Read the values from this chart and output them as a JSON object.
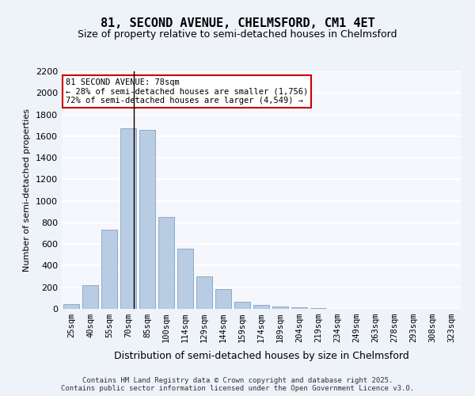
{
  "title1": "81, SECOND AVENUE, CHELMSFORD, CM1 4ET",
  "title2": "Size of property relative to semi-detached houses in Chelmsford",
  "xlabel": "Distribution of semi-detached houses by size in Chelmsford",
  "ylabel": "Number of semi-detached properties",
  "categories": [
    "25sqm",
    "40sqm",
    "55sqm",
    "70sqm",
    "85sqm",
    "100sqm",
    "114sqm",
    "129sqm",
    "144sqm",
    "159sqm",
    "174sqm",
    "189sqm",
    "204sqm",
    "219sqm",
    "234sqm",
    "249sqm",
    "263sqm",
    "278sqm",
    "293sqm",
    "308sqm",
    "323sqm"
  ],
  "values": [
    45,
    220,
    730,
    1670,
    1660,
    850,
    560,
    300,
    180,
    65,
    35,
    20,
    12,
    5,
    0,
    0,
    0,
    0,
    0,
    0,
    0
  ],
  "bar_color": "#b8cce4",
  "bar_edge_color": "#8eaac8",
  "property_size": 78,
  "property_bin_index": 3,
  "annotation_title": "81 SECOND AVENUE: 78sqm",
  "annotation_line1": "← 28% of semi-detached houses are smaller (1,756)",
  "annotation_line2": "72% of semi-detached houses are larger (4,549) →",
  "annotation_box_color": "#ffffff",
  "annotation_box_edge_color": "#cc0000",
  "vline_color": "#000000",
  "ylim": [
    0,
    2200
  ],
  "yticks": [
    0,
    200,
    400,
    600,
    800,
    1000,
    1200,
    1400,
    1600,
    1800,
    2000,
    2200
  ],
  "footer_line1": "Contains HM Land Registry data © Crown copyright and database right 2025.",
  "footer_line2": "Contains public sector information licensed under the Open Government Licence v3.0.",
  "bg_color": "#eef2f9",
  "plot_bg_color": "#f5f7fc",
  "grid_color": "#ffffff"
}
